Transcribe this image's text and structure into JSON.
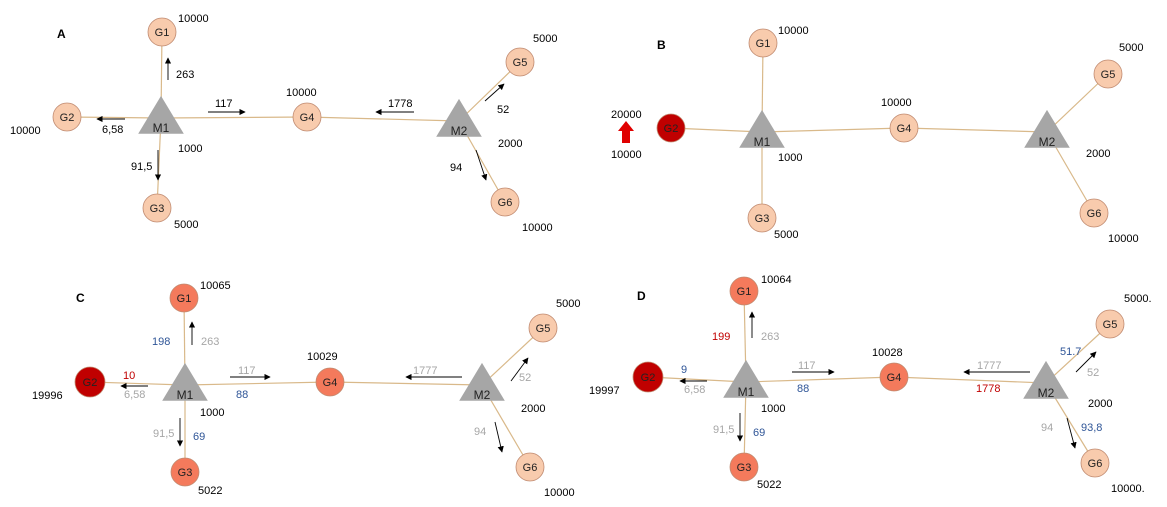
{
  "colors": {
    "edge": "#d9b98a",
    "arrow": "#000000",
    "mother_fill": "#a6a6a6",
    "node_light": "#f8cbad",
    "node_medium": "#f47a5c",
    "node_dark": "#c00000",
    "label_dark": "#000000",
    "label_gray": "#a6a6a6",
    "label_blue": "#2f5597",
    "label_red": "#c00000",
    "perturbation_arrow": "#e00000"
  },
  "panels": [
    {
      "id": "A",
      "letter": "A",
      "nodes": [
        {
          "id": "G1",
          "label": "G1",
          "value": "10000",
          "fill": "light"
        },
        {
          "id": "G2",
          "label": "G2",
          "value": "10000",
          "fill": "light"
        },
        {
          "id": "G3",
          "label": "G3",
          "value": "5000",
          "fill": "light"
        },
        {
          "id": "G4",
          "label": "G4",
          "value": "10000",
          "fill": "light"
        },
        {
          "id": "G5",
          "label": "G5",
          "value": "5000",
          "fill": "light"
        },
        {
          "id": "G6",
          "label": "G6",
          "value": "10000",
          "fill": "light"
        },
        {
          "id": "M1",
          "label": "M1",
          "value": "1000",
          "fill": "mother"
        },
        {
          "id": "M2",
          "label": "M2",
          "value": "2000",
          "fill": "mother"
        }
      ],
      "flows": [
        {
          "text": "263",
          "color": "dark"
        },
        {
          "text": "6,58",
          "color": "dark"
        },
        {
          "text": "91,5",
          "color": "dark"
        },
        {
          "text": "117",
          "color": "dark"
        },
        {
          "text": "1778",
          "color": "dark"
        },
        {
          "text": "52",
          "color": "dark"
        },
        {
          "text": "94",
          "color": "dark"
        }
      ]
    },
    {
      "id": "B",
      "letter": "B",
      "nodes": [
        {
          "id": "G1",
          "label": "G1",
          "value": "10000",
          "fill": "light"
        },
        {
          "id": "G2",
          "label": "G2",
          "value": "20000",
          "fill": "dark"
        },
        {
          "id": "G3",
          "label": "G3",
          "value": "5000",
          "fill": "light"
        },
        {
          "id": "G4",
          "label": "G4",
          "value": "10000",
          "fill": "light"
        },
        {
          "id": "G5",
          "label": "G5",
          "value": "5000",
          "fill": "light"
        },
        {
          "id": "G6",
          "label": "G6",
          "value": "10000",
          "fill": "light"
        },
        {
          "id": "M1",
          "label": "M1",
          "value": "1000",
          "fill": "mother"
        },
        {
          "id": "M2",
          "label": "M2",
          "value": "2000",
          "fill": "mother"
        }
      ],
      "extra_label": "10000"
    },
    {
      "id": "C",
      "letter": "C",
      "nodes": [
        {
          "id": "G1",
          "label": "G1",
          "value": "10065",
          "fill": "medium"
        },
        {
          "id": "G2",
          "label": "G2",
          "value": "19996",
          "fill": "dark"
        },
        {
          "id": "G3",
          "label": "G3",
          "value": "5022",
          "fill": "medium"
        },
        {
          "id": "G4",
          "label": "G4",
          "value": "10029",
          "fill": "medium"
        },
        {
          "id": "G5",
          "label": "G5",
          "value": "5000",
          "fill": "light"
        },
        {
          "id": "G6",
          "label": "G6",
          "value": "10000",
          "fill": "light"
        },
        {
          "id": "M1",
          "label": "M1",
          "value": "1000",
          "fill": "mother"
        },
        {
          "id": "M2",
          "label": "M2",
          "value": "2000",
          "fill": "mother"
        }
      ],
      "flows": [
        {
          "text": "263",
          "color": "gray"
        },
        {
          "text": "198",
          "color": "blue"
        },
        {
          "text": "10",
          "color": "red"
        },
        {
          "text": "6,58",
          "color": "gray"
        },
        {
          "text": "91,5",
          "color": "gray"
        },
        {
          "text": "69",
          "color": "blue"
        },
        {
          "text": "117",
          "color": "gray"
        },
        {
          "text": "88",
          "color": "blue"
        },
        {
          "text": "1777",
          "color": "gray"
        },
        {
          "text": "52",
          "color": "gray"
        },
        {
          "text": "94",
          "color": "gray"
        }
      ]
    },
    {
      "id": "D",
      "letter": "D",
      "nodes": [
        {
          "id": "G1",
          "label": "G1",
          "value": "10064",
          "fill": "medium"
        },
        {
          "id": "G2",
          "label": "G2",
          "value": "19997",
          "fill": "dark"
        },
        {
          "id": "G3",
          "label": "G3",
          "value": "5022",
          "fill": "medium"
        },
        {
          "id": "G4",
          "label": "G4",
          "value": "10028",
          "fill": "medium"
        },
        {
          "id": "G5",
          "label": "G5",
          "value": "5000.",
          "fill": "light"
        },
        {
          "id": "G6",
          "label": "G6",
          "value": "10000.",
          "fill": "light"
        },
        {
          "id": "M1",
          "label": "M1",
          "value": "1000",
          "fill": "mother"
        },
        {
          "id": "M2",
          "label": "M2",
          "value": "2000",
          "fill": "mother"
        }
      ],
      "flows": [
        {
          "text": "263",
          "color": "gray"
        },
        {
          "text": "199",
          "color": "red"
        },
        {
          "text": "9",
          "color": "blue"
        },
        {
          "text": "6,58",
          "color": "gray"
        },
        {
          "text": "91,5",
          "color": "gray"
        },
        {
          "text": "69",
          "color": "blue"
        },
        {
          "text": "117",
          "color": "gray"
        },
        {
          "text": "88",
          "color": "blue"
        },
        {
          "text": "1777",
          "color": "gray"
        },
        {
          "text": "1778",
          "color": "red"
        },
        {
          "text": "51.7",
          "color": "blue"
        },
        {
          "text": "52",
          "color": "gray"
        },
        {
          "text": "94",
          "color": "gray"
        },
        {
          "text": "93,8",
          "color": "blue"
        }
      ]
    }
  ]
}
